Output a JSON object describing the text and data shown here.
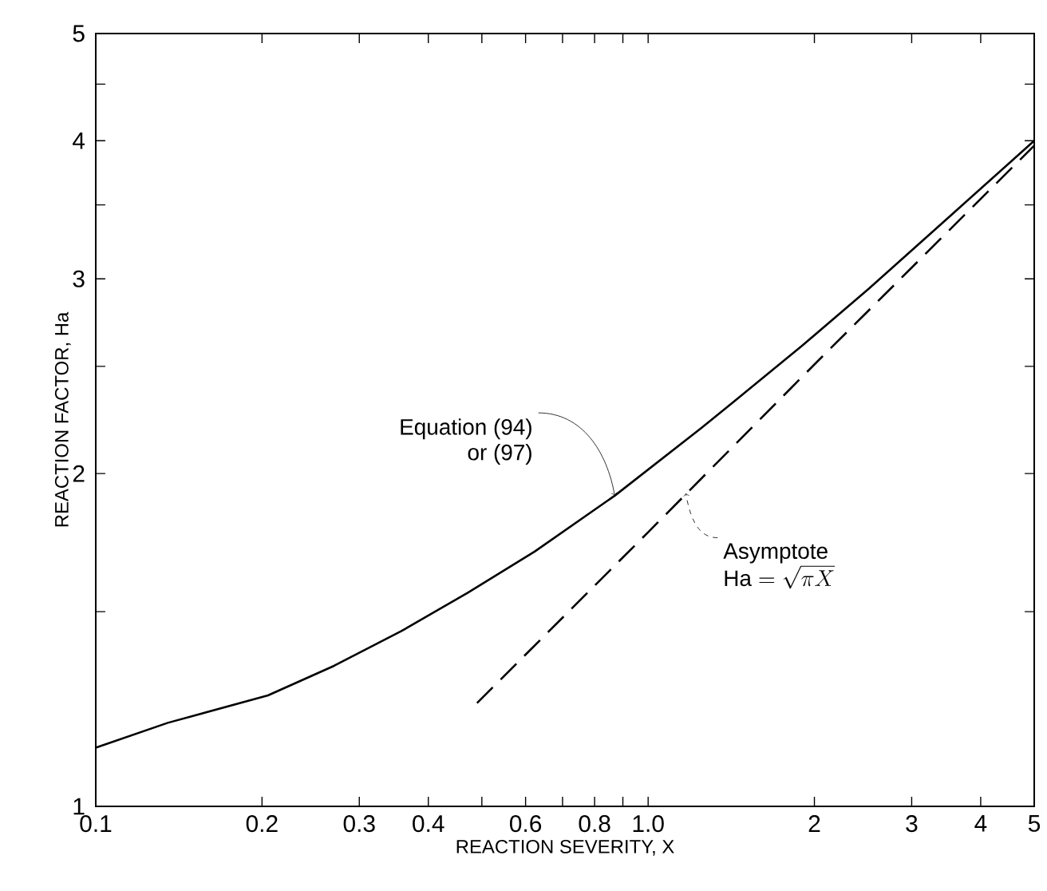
{
  "chart_data": {
    "type": "line",
    "xlabel": "REACTION  SEVERITY, X",
    "ylabel": "REACTION FACTOR, Ha",
    "log": "xy",
    "grid": false,
    "marker": "none",
    "xlim": [
      0.1,
      5
    ],
    "ylim": [
      1,
      5
    ],
    "xticks": [
      0.1,
      0.2,
      0.3,
      0.4,
      {
        "value": 0.5,
        "label": null
      },
      0.6,
      {
        "value": 0.7,
        "label": null
      },
      0.8,
      {
        "value": 0.9,
        "label": null
      },
      {
        "value": 1,
        "label": "1.0"
      },
      2,
      3,
      4,
      5
    ],
    "yticks": [
      1,
      {
        "value": 1.5,
        "label": null
      },
      2,
      {
        "value": 2.5,
        "label": null
      },
      3,
      {
        "value": 3.5,
        "label": null
      },
      4,
      {
        "value": 4.5,
        "label": null
      },
      5
    ],
    "series": [
      {
        "color": "#000000",
        "line_style": "solid",
        "x": [
          0.1,
          0.135,
          0.205,
          0.27,
          0.357,
          0.471,
          0.623,
          0.87,
          1.25,
          1.44,
          1.9,
          2.51,
          3.5,
          5
        ],
        "values": [
          1.13,
          1.19,
          1.26,
          1.34,
          1.44,
          1.56,
          1.7,
          1.91,
          2.2,
          2.33,
          2.61,
          2.94,
          3.41,
          4.0
        ]
      },
      {
        "color": "#000000",
        "line_style": "dashed",
        "x": [
          0.49,
          1,
          2,
          5
        ],
        "values": [
          1.24,
          1.77,
          2.51,
          3.96
        ]
      }
    ],
    "annotations": [
      {
        "text": "Equation (94)",
        "x": 0.87,
        "y": 1.91
      },
      "or (97)",
      {
        "text": "Asymptote",
        "x": 1.17,
        "y": 1.92
      },
      "\\mathrm{Ha}=\\sqrt{\\pi X}"
    ]
  }
}
